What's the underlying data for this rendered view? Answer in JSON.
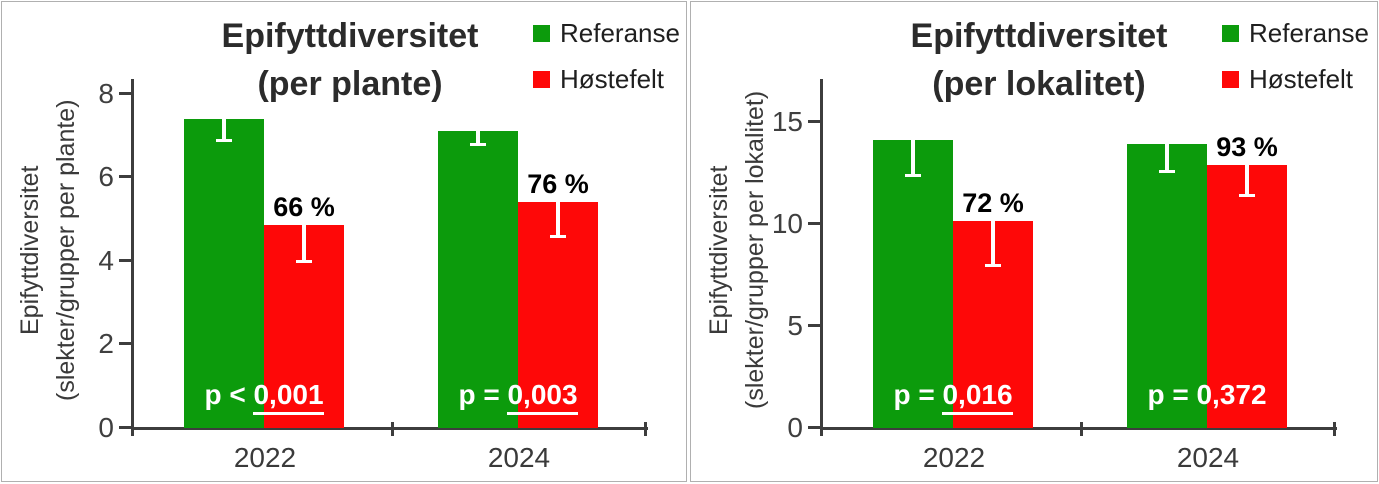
{
  "colors": {
    "referanse": "#0c9b0c",
    "hostefelt": "#fe0808",
    "axis": "#3d3d3d",
    "error_bar": "#ffffff",
    "title_text": "#2b2b2b",
    "pct_text": "#000000",
    "p_text": "#ffffff",
    "panel_border": "#b0b0b0"
  },
  "legend": {
    "items": [
      {
        "label": "Referanse",
        "color_key": "referanse"
      },
      {
        "label": "Høstefelt",
        "color_key": "hostefelt"
      }
    ]
  },
  "chart_data": [
    {
      "type": "bar",
      "title_line1": "Epifyttdiversitet",
      "title_line2": "(per plante)",
      "ylabel_line1": "Epifyttdiversitet",
      "ylabel_line2": "(slekter/grupper per plante)",
      "categories": [
        "2022",
        "2024"
      ],
      "yticks": [
        0,
        2,
        4,
        6,
        8
      ],
      "ylim": [
        0,
        8.35
      ],
      "grid": false,
      "legend_position": "top-right",
      "series": [
        {
          "name": "Referanse",
          "values": [
            7.4,
            7.1
          ],
          "errors": [
            0.55,
            0.35
          ]
        },
        {
          "name": "Høstefelt",
          "values": [
            4.85,
            5.4
          ],
          "errors": [
            0.9,
            0.85
          ]
        }
      ],
      "pct_labels": [
        "66 %",
        "76 %"
      ],
      "p_values": [
        {
          "prefix": "p < ",
          "value": "0,001",
          "underline": true
        },
        {
          "prefix": "p = ",
          "value": "0,003",
          "underline": true
        }
      ]
    },
    {
      "type": "bar",
      "title_line1": "Epifyttdiversitet",
      "title_line2": "(per lokalitet)",
      "ylabel_line1": "Epifyttdiversitet",
      "ylabel_line2": "(slekter/grupper per lokalitet)",
      "categories": [
        "2022",
        "2024"
      ],
      "yticks": [
        0,
        5,
        10,
        15
      ],
      "ylim": [
        0,
        17.1
      ],
      "grid": false,
      "legend_position": "top-right",
      "series": [
        {
          "name": "Referanse",
          "values": [
            14.1,
            13.9
          ],
          "errors": [
            1.8,
            1.4
          ]
        },
        {
          "name": "Høstefelt",
          "values": [
            10.15,
            12.9
          ],
          "errors": [
            2.25,
            1.6
          ]
        }
      ],
      "pct_labels": [
        "72 %",
        "93 %"
      ],
      "p_values": [
        {
          "prefix": "p = ",
          "value": "0,016",
          "underline": true
        },
        {
          "prefix": "p = ",
          "value": "0,372",
          "underline": false
        }
      ]
    }
  ]
}
